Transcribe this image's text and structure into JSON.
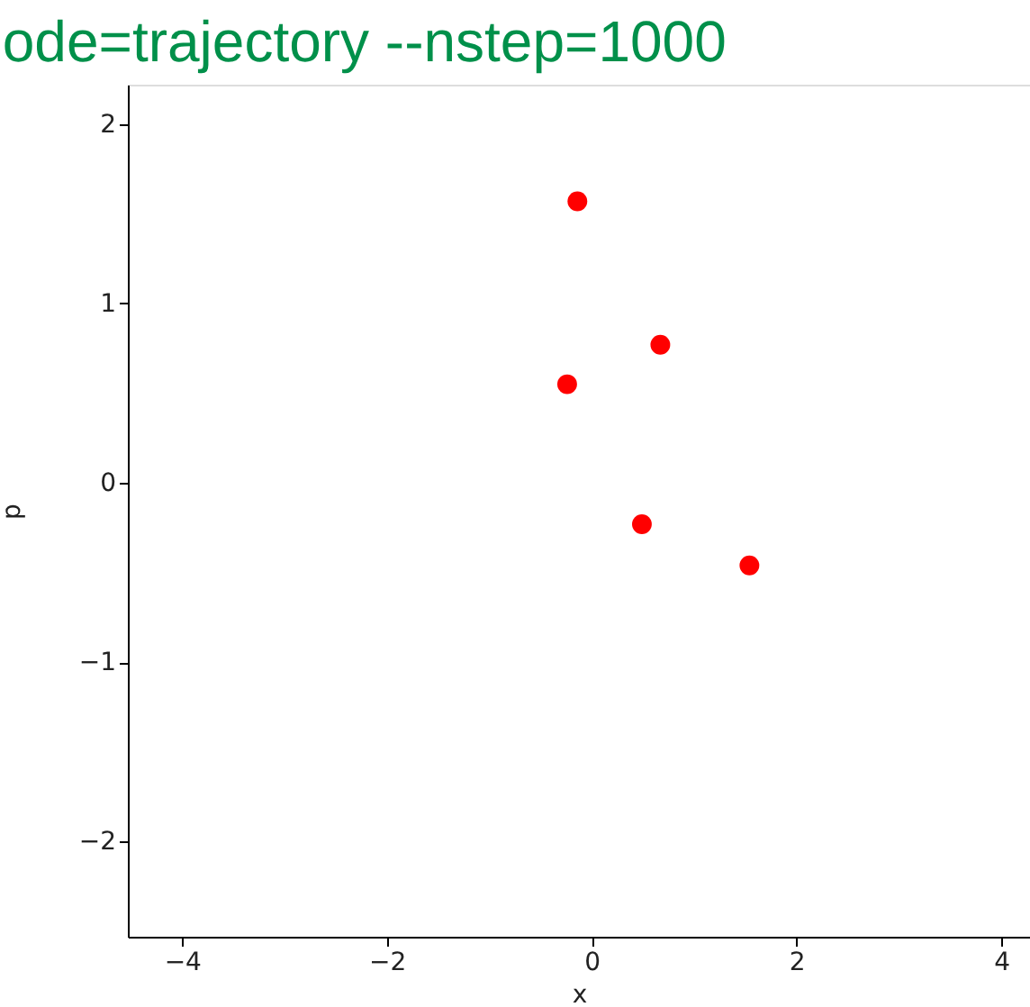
{
  "chart_data": {
    "type": "scatter",
    "title": "ode=trajectory --nstep=1000",
    "xlabel": "x",
    "ylabel": "p",
    "x": [
      -0.14,
      0.67,
      -0.24,
      0.49,
      1.54
    ],
    "series": [
      {
        "color": "#ff0000",
        "values": [
          1.57,
          0.77,
          0.55,
          -0.23,
          -0.46
        ]
      }
    ],
    "xlim": [
      -4.53,
      4.28
    ],
    "ylim": [
      -2.53,
      2.22
    ],
    "xticks": [
      -4,
      -2,
      0,
      2,
      4
    ],
    "yticks": [
      -2,
      -1,
      0,
      1,
      2
    ],
    "marker": "circle",
    "grid": false,
    "legend": false
  }
}
